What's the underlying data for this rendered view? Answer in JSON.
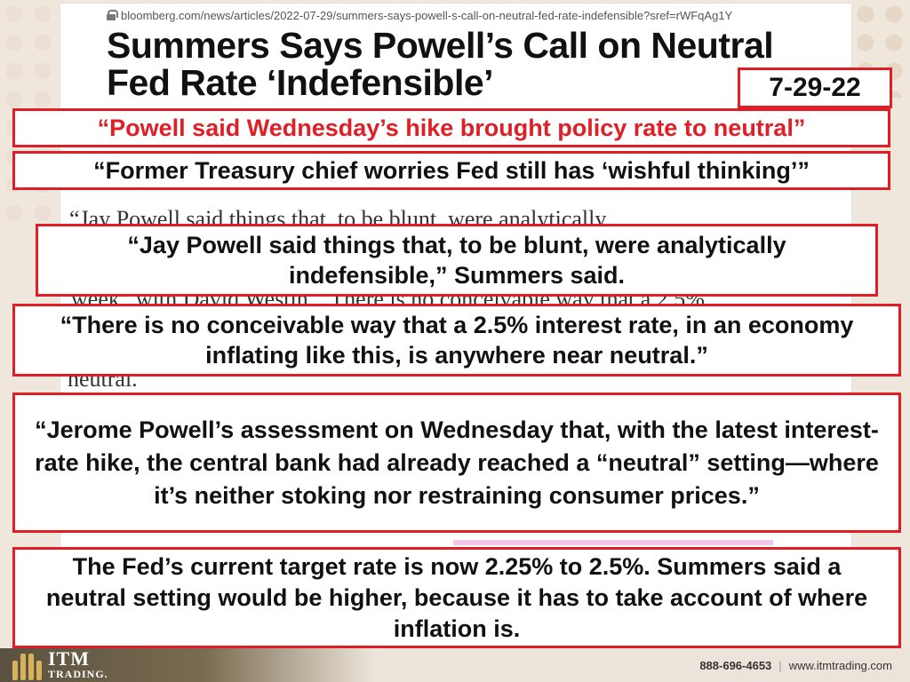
{
  "browser": {
    "url": "bloomberg.com/news/articles/2022-07-29/summers-says-powell-s-call-on-neutral-fed-rate-indefensible?sref=rWFqAg1Y"
  },
  "article": {
    "headline_line1": "Summers Says Powell’s Call on Neutral",
    "headline_line2": "Fed Rate ‘Indefensible’",
    "snippet_1": "“Jay Powell said things that, to be blunt, were analytically",
    "snippet_2": "week” with David Westin. “There is no conceivable way that a 2.5%",
    "snippet_3": "neutral."
  },
  "date_label": "7-29-22",
  "callouts": {
    "subhead": "“Powell said Wednesday’s hike brought policy rate to neutral”",
    "dek": "“Former Treasury chief worries Fed still has ‘wishful thinking’”",
    "quote1": "“Jay Powell said things that, to be blunt, were analytically indefensible,” Summers said.",
    "quote2": "“There is no conceivable way that a 2.5% interest rate, in an economy inflating like this, is anywhere near neutral.”",
    "quote3": "“Jerome Powell’s assessment on Wednesday that, with the latest interest-rate hike, the central bank had already reached a “neutral” setting—where it’s neither stoking nor restraining consumer prices.”",
    "quote4": "The Fed’s current target rate is now 2.25% to 2.5%. Summers said a neutral setting would be higher, because it has to take account of where inflation is."
  },
  "footer": {
    "logo_main": "ITM",
    "logo_sub": "TRADING.",
    "phone": "888-696-4653",
    "separator": "|",
    "website": "www.itmtrading.com"
  },
  "colors": {
    "accent_red": "#e01e25",
    "background": "#efe6dc"
  }
}
